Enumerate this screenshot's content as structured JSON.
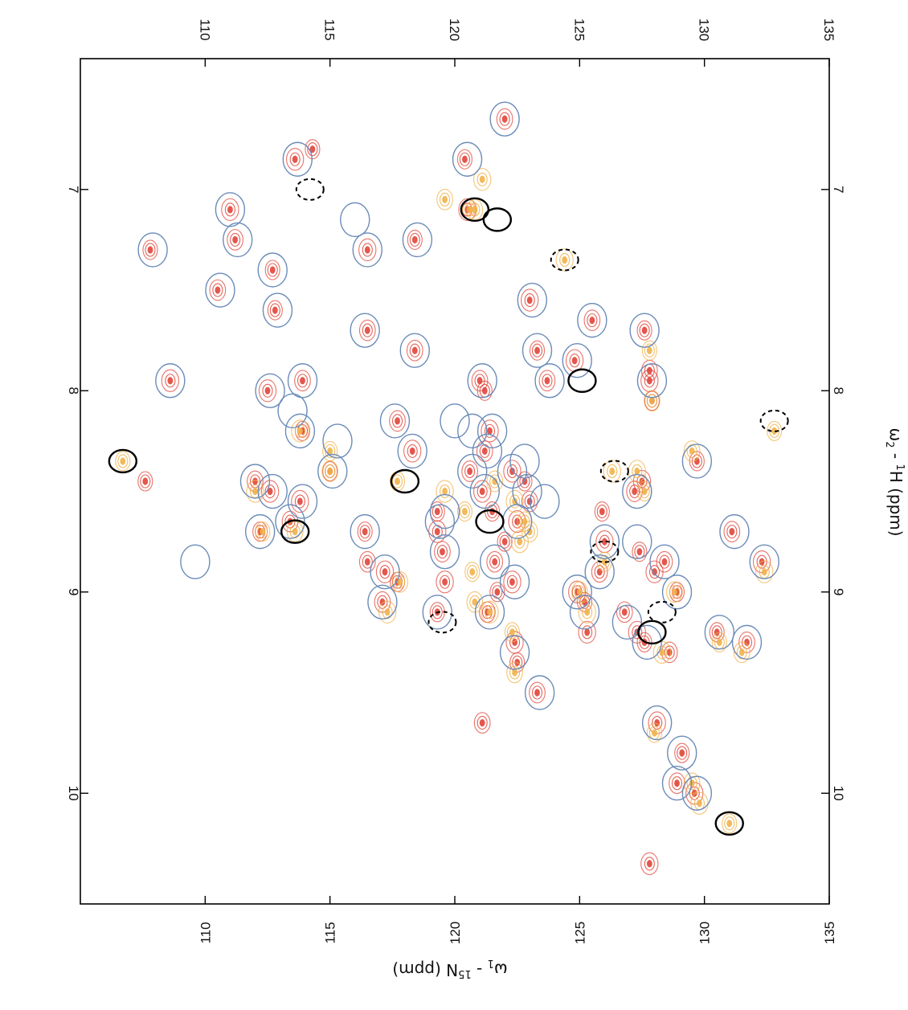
{
  "chart_data": {
    "type": "scatter",
    "title": "",
    "x_axis": {
      "label_prefix": "ω",
      "label_sub": "2",
      "label_sup": "1",
      "label_suffix": "H (ppm)",
      "ticks": [
        7,
        8,
        9,
        10
      ],
      "range": [
        6.35,
        10.55
      ]
    },
    "y_axis": {
      "label_prefix": "ω",
      "label_sub": "1",
      "label_sup": "15",
      "label_suffix": "N (ppm)",
      "ticks": [
        110,
        115,
        120,
        125,
        130,
        135
      ],
      "range": [
        105,
        135
      ]
    },
    "colors": {
      "peak_red": "#e0453a",
      "peak_orange": "#f0b24a",
      "circle_blue": "#6c8cb8",
      "circle_black": "#000000",
      "frame": "#000000"
    },
    "series": [
      {
        "key": "red",
        "values": [
          [
            7.3,
            107.8
          ],
          [
            7.25,
            111.2
          ],
          [
            7.1,
            111.0
          ],
          [
            7.4,
            112.7
          ],
          [
            7.5,
            110.5
          ],
          [
            7.95,
            108.6
          ],
          [
            7.6,
            112.8
          ],
          [
            7.95,
            113.9
          ],
          [
            8.0,
            112.5
          ],
          [
            8.2,
            113.9
          ],
          [
            7.7,
            116.5
          ],
          [
            7.3,
            116.5
          ],
          [
            7.25,
            118.4
          ],
          [
            7.8,
            118.4
          ],
          [
            6.85,
            113.6
          ],
          [
            6.8,
            114.3
          ],
          [
            8.15,
            117.7
          ],
          [
            8.3,
            118.3
          ],
          [
            8.4,
            115.0
          ],
          [
            8.45,
            112.0
          ],
          [
            8.5,
            112.6
          ],
          [
            8.7,
            112.2
          ],
          [
            8.65,
            113.4
          ],
          [
            8.55,
            113.8
          ],
          [
            8.7,
            116.4
          ],
          [
            8.85,
            116.5
          ],
          [
            8.9,
            117.2
          ],
          [
            8.95,
            117.7
          ],
          [
            9.05,
            117.1
          ],
          [
            8.7,
            119.3
          ],
          [
            8.6,
            119.3
          ],
          [
            8.8,
            119.5
          ],
          [
            8.95,
            119.6
          ],
          [
            9.1,
            119.3
          ],
          [
            8.4,
            120.6
          ],
          [
            8.5,
            121.1
          ],
          [
            8.6,
            121.5
          ],
          [
            8.3,
            121.2
          ],
          [
            8.2,
            121.4
          ],
          [
            8.0,
            121.2
          ],
          [
            7.95,
            121.0
          ],
          [
            7.1,
            120.5
          ],
          [
            6.85,
            120.4
          ],
          [
            6.65,
            122.0
          ],
          [
            7.55,
            123.0
          ],
          [
            7.8,
            123.3
          ],
          [
            7.95,
            123.7
          ],
          [
            8.4,
            122.3
          ],
          [
            8.45,
            122.8
          ],
          [
            8.55,
            123.0
          ],
          [
            8.65,
            122.5
          ],
          [
            8.75,
            122.0
          ],
          [
            8.85,
            121.6
          ],
          [
            8.95,
            122.3
          ],
          [
            9.0,
            121.7
          ],
          [
            9.1,
            121.3
          ],
          [
            9.25,
            122.4
          ],
          [
            9.35,
            122.5
          ],
          [
            9.5,
            123.3
          ],
          [
            9.0,
            124.9
          ],
          [
            9.05,
            125.2
          ],
          [
            8.9,
            125.8
          ],
          [
            8.75,
            126.0
          ],
          [
            8.6,
            125.9
          ],
          [
            7.65,
            125.5
          ],
          [
            7.85,
            124.8
          ],
          [
            7.7,
            127.6
          ],
          [
            7.9,
            127.8
          ],
          [
            7.95,
            127.8
          ],
          [
            8.05,
            127.9
          ],
          [
            8.5,
            127.2
          ],
          [
            8.45,
            127.5
          ],
          [
            8.8,
            127.4
          ],
          [
            8.85,
            128.4
          ],
          [
            8.9,
            128.0
          ],
          [
            9.0,
            128.9
          ],
          [
            9.1,
            126.8
          ],
          [
            9.2,
            127.3
          ],
          [
            9.25,
            127.6
          ],
          [
            9.3,
            128.6
          ],
          [
            9.65,
            128.1
          ],
          [
            9.8,
            129.1
          ],
          [
            9.95,
            128.9
          ],
          [
            10.0,
            129.6
          ],
          [
            8.35,
            129.7
          ],
          [
            8.7,
            131.1
          ],
          [
            8.85,
            132.3
          ],
          [
            9.2,
            130.5
          ],
          [
            9.25,
            131.7
          ],
          [
            10.35,
            127.8
          ],
          [
            8.45,
            107.6
          ],
          [
            9.65,
            121.1
          ],
          [
            9.2,
            125.3
          ]
        ]
      },
      {
        "key": "orange",
        "values": [
          [
            8.35,
            106.7
          ],
          [
            8.4,
            115.0
          ],
          [
            8.5,
            112.0
          ],
          [
            8.7,
            112.3
          ],
          [
            8.7,
            113.6
          ],
          [
            8.2,
            113.8
          ],
          [
            7.1,
            120.6
          ],
          [
            7.1,
            120.8
          ],
          [
            8.5,
            119.6
          ],
          [
            8.6,
            120.4
          ],
          [
            8.45,
            121.6
          ],
          [
            8.55,
            122.4
          ],
          [
            8.65,
            122.8
          ],
          [
            8.7,
            123.0
          ],
          [
            8.75,
            122.6
          ],
          [
            8.9,
            120.7
          ],
          [
            9.05,
            120.8
          ],
          [
            9.1,
            121.4
          ],
          [
            9.2,
            122.3
          ],
          [
            9.4,
            122.4
          ],
          [
            8.4,
            126.3
          ],
          [
            8.85,
            126.0
          ],
          [
            9.0,
            125.0
          ],
          [
            9.1,
            125.3
          ],
          [
            7.8,
            127.8
          ],
          [
            8.05,
            127.9
          ],
          [
            8.4,
            127.3
          ],
          [
            8.5,
            127.6
          ],
          [
            9.0,
            128.8
          ],
          [
            9.3,
            128.3
          ],
          [
            9.7,
            128.0
          ],
          [
            9.95,
            129.5
          ],
          [
            10.05,
            129.8
          ],
          [
            10.15,
            131.0
          ],
          [
            8.3,
            129.5
          ],
          [
            8.9,
            132.4
          ],
          [
            9.25,
            130.6
          ],
          [
            9.3,
            131.5
          ],
          [
            7.35,
            124.4
          ],
          [
            8.2,
            132.8
          ],
          [
            7.05,
            119.6
          ],
          [
            6.95,
            121.1
          ],
          [
            8.45,
            117.7
          ],
          [
            8.95,
            117.8
          ],
          [
            9.1,
            117.3
          ],
          [
            8.3,
            115.0
          ]
        ]
      }
    ],
    "blue_circles": [
      [
        7.3,
        107.9
      ],
      [
        7.25,
        111.3
      ],
      [
        7.1,
        111.0
      ],
      [
        7.4,
        112.7
      ],
      [
        7.5,
        110.6
      ],
      [
        7.95,
        108.6
      ],
      [
        7.6,
        112.9
      ],
      [
        7.95,
        113.9
      ],
      [
        8.0,
        112.6
      ],
      [
        8.2,
        113.8
      ],
      [
        7.7,
        116.4
      ],
      [
        7.3,
        116.5
      ],
      [
        7.25,
        118.5
      ],
      [
        7.8,
        118.4
      ],
      [
        6.85,
        113.7
      ],
      [
        8.15,
        117.6
      ],
      [
        8.3,
        118.3
      ],
      [
        8.4,
        115.1
      ],
      [
        8.45,
        112.0
      ],
      [
        8.5,
        112.7
      ],
      [
        8.7,
        112.2
      ],
      [
        8.65,
        113.4
      ],
      [
        8.55,
        113.9
      ],
      [
        8.7,
        116.4
      ],
      [
        8.9,
        117.2
      ],
      [
        9.05,
        117.1
      ],
      [
        8.65,
        119.4
      ],
      [
        8.8,
        119.6
      ],
      [
        9.1,
        119.3
      ],
      [
        8.4,
        120.7
      ],
      [
        8.5,
        121.2
      ],
      [
        8.3,
        121.3
      ],
      [
        8.2,
        121.5
      ],
      [
        7.95,
        121.1
      ],
      [
        6.85,
        120.5
      ],
      [
        6.65,
        122.0
      ],
      [
        7.55,
        123.1
      ],
      [
        7.8,
        123.3
      ],
      [
        7.95,
        123.8
      ],
      [
        8.4,
        122.3
      ],
      [
        8.5,
        122.9
      ],
      [
        8.65,
        122.5
      ],
      [
        8.85,
        121.6
      ],
      [
        8.95,
        122.4
      ],
      [
        9.1,
        121.4
      ],
      [
        9.3,
        122.4
      ],
      [
        9.5,
        123.4
      ],
      [
        9.0,
        124.9
      ],
      [
        9.1,
        125.2
      ],
      [
        8.9,
        125.8
      ],
      [
        8.75,
        126.0
      ],
      [
        7.65,
        125.5
      ],
      [
        7.85,
        124.9
      ],
      [
        7.7,
        127.6
      ],
      [
        7.95,
        127.9
      ],
      [
        8.5,
        127.3
      ],
      [
        8.85,
        128.4
      ],
      [
        9.0,
        128.9
      ],
      [
        9.15,
        126.9
      ],
      [
        9.25,
        127.7
      ],
      [
        9.65,
        128.1
      ],
      [
        9.8,
        129.1
      ],
      [
        9.95,
        128.9
      ],
      [
        10.0,
        129.7
      ],
      [
        8.35,
        129.7
      ],
      [
        8.7,
        131.2
      ],
      [
        8.85,
        132.4
      ],
      [
        9.2,
        130.6
      ],
      [
        9.25,
        131.7
      ],
      [
        8.85,
        109.6
      ],
      [
        8.1,
        113.5
      ],
      [
        8.25,
        115.3
      ],
      [
        7.15,
        116.0
      ],
      [
        8.15,
        120.0
      ],
      [
        8.6,
        119.6
      ],
      [
        8.35,
        122.8
      ],
      [
        8.55,
        123.6
      ],
      [
        8.75,
        127.3
      ],
      [
        8.2,
        120.7
      ]
    ],
    "black_circles_solid": [
      [
        8.35,
        106.7
      ],
      [
        8.7,
        113.6
      ],
      [
        8.45,
        118.0
      ],
      [
        8.65,
        121.4
      ],
      [
        7.1,
        120.8
      ],
      [
        7.15,
        121.7
      ],
      [
        7.95,
        125.1
      ],
      [
        9.2,
        127.9
      ],
      [
        10.15,
        131.0
      ]
    ],
    "black_circles_dashed": [
      [
        7.0,
        114.2
      ],
      [
        7.35,
        124.4
      ],
      [
        8.15,
        132.8
      ],
      [
        8.4,
        126.4
      ],
      [
        8.8,
        126.0
      ],
      [
        9.1,
        128.3
      ],
      [
        9.15,
        119.5
      ]
    ]
  }
}
